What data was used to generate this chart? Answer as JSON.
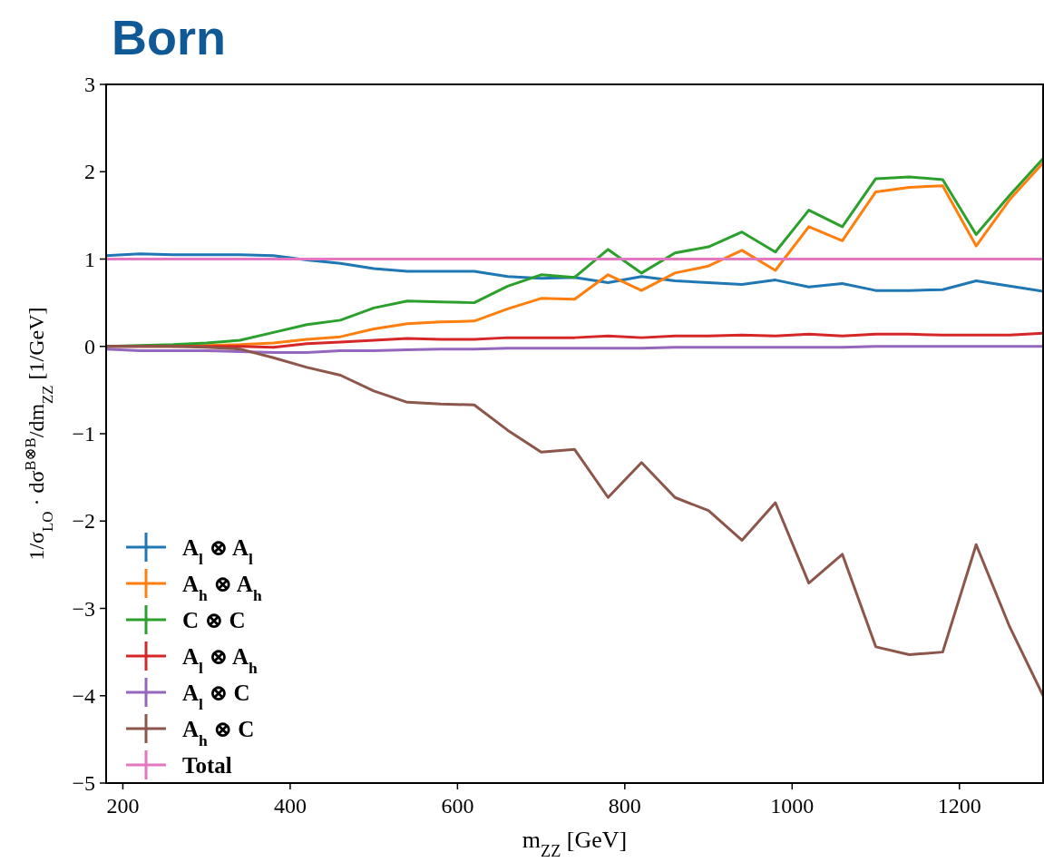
{
  "chart_data": {
    "type": "line",
    "title": "Born",
    "xlabel": "m$_{ZZ}$ [GeV]",
    "ylabel": "1/σ$_{LO}$ · dσ$^{B⊗B}$/dm$_{ZZ}$ [1/GeV]",
    "x": [
      180,
      220,
      260,
      300,
      340,
      380,
      420,
      460,
      500,
      540,
      580,
      620,
      660,
      700,
      740,
      780,
      820,
      860,
      900,
      940,
      980,
      1020,
      1060,
      1100,
      1140,
      1180,
      1220,
      1260,
      1300
    ],
    "xlim": [
      180,
      1300
    ],
    "xticks": [
      200,
      400,
      600,
      800,
      1000,
      1200
    ],
    "ylim": [
      -5,
      3
    ],
    "yticks": [
      {
        "value": -5,
        "label": "−5"
      },
      {
        "value": -4,
        "label": "−4"
      },
      {
        "value": -3,
        "label": "−3"
      },
      {
        "value": -2,
        "label": "−2"
      },
      {
        "value": -1,
        "label": "−1"
      },
      0,
      1,
      2,
      3
    ],
    "legend": "bottom left",
    "grid": false,
    "marker": "none",
    "line_style": "solid",
    "series": [
      {
        "name": "A$_{l}$ ⊗ A$_{l}$",
        "color": "#1f77b4",
        "values": [
          1.04,
          1.06,
          1.05,
          1.05,
          1.05,
          1.04,
          0.99,
          0.95,
          0.89,
          0.86,
          0.86,
          0.86,
          0.8,
          0.78,
          0.79,
          0.73,
          0.8,
          0.75,
          0.73,
          0.71,
          0.76,
          0.68,
          0.72,
          0.64,
          0.64,
          0.65,
          0.75,
          0.69,
          0.63
        ]
      },
      {
        "name": "A$_{h}$ ⊗ A$_{h}$",
        "color": "#ff7f0e",
        "values": [
          null,
          null,
          0,
          0.01,
          0.02,
          0.04,
          0.08,
          0.11,
          0.2,
          0.26,
          0.28,
          0.29,
          0.43,
          0.55,
          0.54,
          0.82,
          0.64,
          0.84,
          0.92,
          1.1,
          0.87,
          1.37,
          1.21,
          1.77,
          1.82,
          1.84,
          1.15,
          1.68,
          2.1
        ]
      },
      {
        "name": "C ⊗ C",
        "color": "#2ca02c",
        "values": [
          0,
          0.01,
          0.02,
          0.04,
          0.07,
          0.16,
          0.25,
          0.3,
          0.44,
          0.52,
          0.51,
          0.5,
          0.69,
          0.82,
          0.79,
          1.11,
          0.84,
          1.07,
          1.14,
          1.31,
          1.08,
          1.56,
          1.37,
          1.92,
          1.94,
          1.91,
          1.28,
          1.73,
          2.15
        ]
      },
      {
        "name": "A$_{l}$ ⊗ A$_{h}$",
        "color": "#d62728",
        "values": [
          0,
          0,
          0,
          0,
          0,
          -0.01,
          0.03,
          0.05,
          0.07,
          0.09,
          0.08,
          0.08,
          0.1,
          0.1,
          0.1,
          0.12,
          0.1,
          0.12,
          0.12,
          0.13,
          0.12,
          0.14,
          0.12,
          0.14,
          0.14,
          0.13,
          0.13,
          0.13,
          0.15
        ]
      },
      {
        "name": "A$_{l}$ ⊗ C",
        "color": "#9467bd",
        "values": [
          -0.03,
          -0.05,
          -0.05,
          -0.05,
          -0.06,
          -0.07,
          -0.07,
          -0.05,
          -0.05,
          -0.04,
          -0.03,
          -0.03,
          -0.02,
          -0.02,
          -0.02,
          -0.02,
          -0.02,
          -0.01,
          -0.01,
          -0.01,
          -0.01,
          -0.01,
          -0.01,
          0,
          0,
          0,
          0,
          0,
          0
        ]
      },
      {
        "name": "A$_{h}$ ⊗ C",
        "color": "#8c564b",
        "values": [
          0,
          0,
          0,
          -0.01,
          -0.03,
          -0.13,
          -0.24,
          -0.33,
          -0.51,
          -0.64,
          -0.66,
          -0.67,
          -0.96,
          -1.21,
          -1.18,
          -1.73,
          -1.33,
          -1.73,
          -1.88,
          -2.22,
          -1.79,
          -2.71,
          -2.38,
          -3.44,
          -3.53,
          -3.5,
          -2.27,
          -3.21,
          -4.0
        ]
      },
      {
        "name": "Total",
        "color": "#e377c2",
        "values": [
          1,
          1,
          1,
          1,
          1,
          1,
          1,
          1,
          1,
          1,
          1,
          1,
          1,
          1,
          1,
          1,
          1,
          1,
          1,
          1,
          1,
          1,
          1,
          1,
          1,
          1,
          1,
          1,
          1
        ]
      }
    ]
  }
}
